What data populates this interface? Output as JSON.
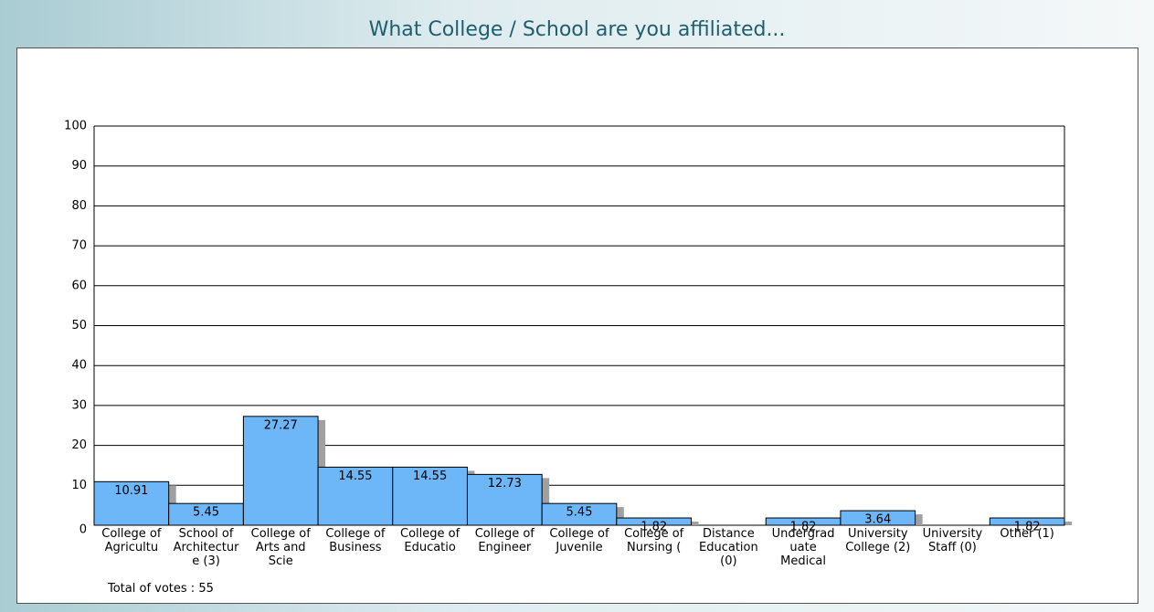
{
  "chart_data": {
    "type": "bar",
    "title": "What College / School are you affiliated...",
    "categories": [
      "College of Agricultu",
      "School of Architecture (3)",
      "College of Arts and Scie",
      "College of Business",
      "College of Educatio",
      "College of Engineer",
      "College of Juvenile",
      "College of Nursing (",
      "Distance Education (0)",
      "Undergraduate Medical",
      "University College (2)",
      "University Staff (0)",
      "Other (1)"
    ],
    "values": [
      10.91,
      5.45,
      27.27,
      14.55,
      14.55,
      12.73,
      5.45,
      1.82,
      0,
      1.82,
      3.64,
      0,
      1.82
    ],
    "color": "#6db6f7",
    "ylim": [
      0,
      100
    ],
    "yticks": [
      0,
      10,
      20,
      30,
      40,
      50,
      60,
      70,
      80,
      90,
      100
    ],
    "grid": true,
    "footer": "Total of votes : 55"
  }
}
